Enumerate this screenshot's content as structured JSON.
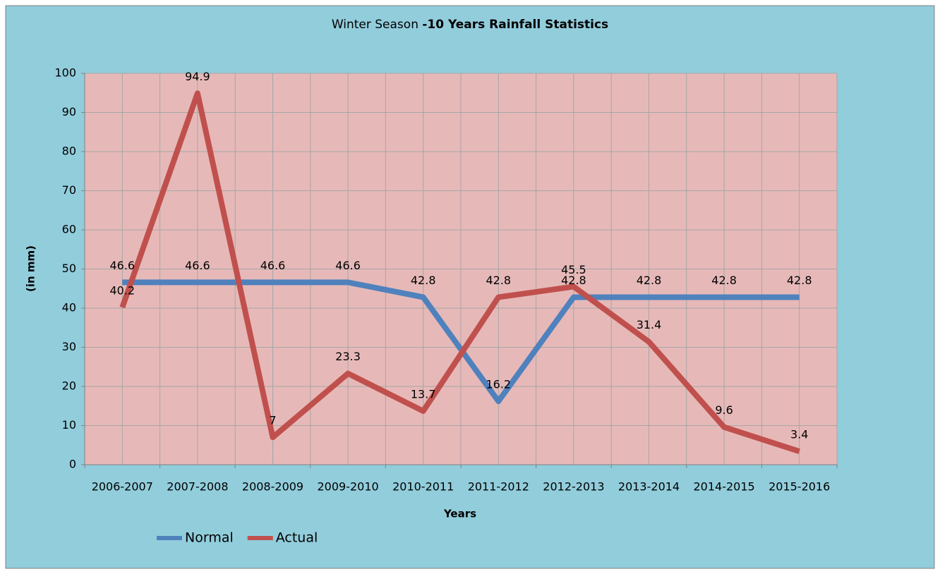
{
  "chart_data": {
    "type": "line",
    "title": {
      "regular": "Winter  Season",
      "bold": "-10 Years Rainfall Statistics"
    },
    "x_label": "Years",
    "y_label": "(in mm)",
    "categories": [
      "2006-2007",
      "2007-2008",
      "2008-2009",
      "2009-2010",
      "2010-2011",
      "2011-2012",
      "2012-2013",
      "2013-2014",
      "2014-2015",
      "2015-2016"
    ],
    "series": [
      {
        "name": "Normal",
        "color": "#4f81bd",
        "values": [
          46.6,
          46.6,
          46.6,
          46.6,
          42.8,
          16.2,
          42.8,
          42.8,
          42.8,
          42.8
        ]
      },
      {
        "name": "Actual",
        "color": "#c0504d",
        "values": [
          40.2,
          94.9,
          7,
          23.3,
          13.7,
          42.8,
          45.5,
          31.4,
          9.6,
          3.4
        ]
      }
    ],
    "ylim": [
      0,
      100
    ],
    "yticks": [
      0,
      10,
      20,
      30,
      40,
      50,
      60,
      70,
      80,
      90,
      100
    ],
    "grid": true,
    "legend": "bottom-left"
  }
}
